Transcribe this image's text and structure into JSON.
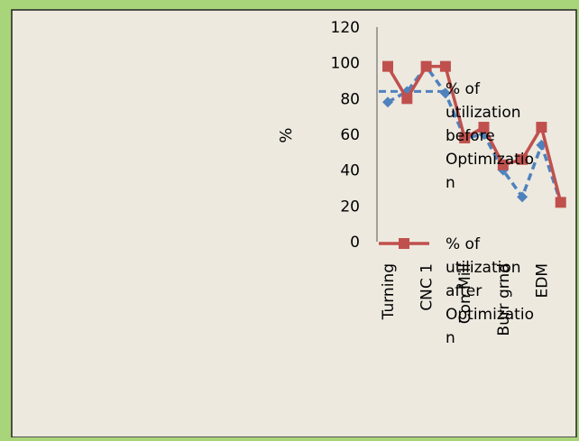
{
  "chart_data": {
    "type": "line",
    "title": "",
    "xlabel": "",
    "ylabel": "%",
    "ylim": [
      0,
      120
    ],
    "yticks": [
      0,
      20,
      40,
      60,
      80,
      100,
      120
    ],
    "categories": [
      "Turning",
      "",
      "CNC 1",
      "",
      "Con Mill",
      "",
      "Burr grnd",
      "",
      "EDM",
      ""
    ],
    "series": [
      {
        "name": "% of utilization before Optimization",
        "legend_lines": [
          "% of",
          "utilization",
          "before",
          "Optimizatio",
          "n"
        ],
        "color": "#4f81bd",
        "dash": true,
        "marker": "diamond",
        "values": [
          78,
          84,
          98,
          83,
          58,
          60,
          40,
          25,
          54,
          22
        ]
      },
      {
        "name": "% of utilization after Optimization",
        "legend_lines": [
          "% of",
          "utilization",
          "after",
          "Optimizatio",
          "n"
        ],
        "color": "#c0504d",
        "dash": false,
        "marker": "square",
        "values": [
          98,
          80,
          98,
          98,
          58,
          64,
          43,
          46,
          64,
          22
        ]
      }
    ],
    "reference_line": {
      "value": 84,
      "color": "#4f81bd"
    },
    "grid": false,
    "legend": "overlapping plot, right"
  },
  "colors": {
    "background": "#a8d47a",
    "chart_area": "#ede9df",
    "border": "#222222"
  }
}
